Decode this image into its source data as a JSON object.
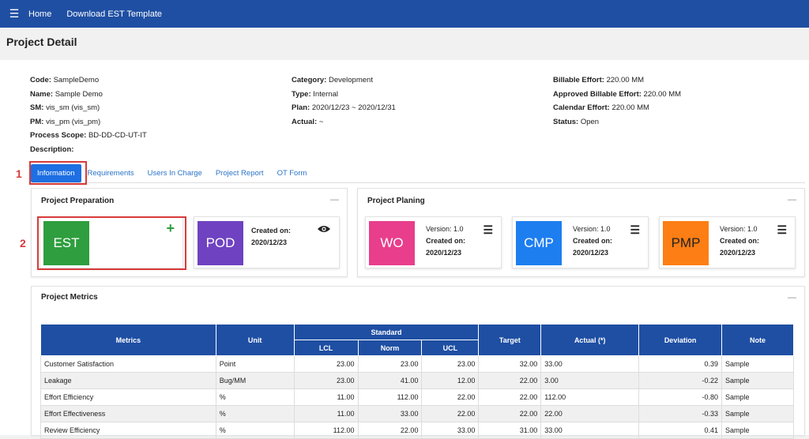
{
  "nav": {
    "home": "Home",
    "download": "Download EST Template"
  },
  "page_title": "Project Detail",
  "info": {
    "col1": [
      {
        "label": "Code:",
        "value": "SampleDemo"
      },
      {
        "label": "Name:",
        "value": "Sample Demo"
      },
      {
        "label": "SM:",
        "value": "vis_sm (vis_sm)"
      },
      {
        "label": "PM:",
        "value": "vis_pm (vis_pm)"
      },
      {
        "label": "Process Scope:",
        "value": "BD-DD-CD-UT-IT"
      },
      {
        "label": "Description:",
        "value": ""
      }
    ],
    "col2": [
      {
        "label": "Category:",
        "value": "Development"
      },
      {
        "label": "Type:",
        "value": "Internal"
      },
      {
        "label": "Plan:",
        "value": "2020/12/23 ~ 2020/12/31"
      },
      {
        "label": "Actual:",
        "value": "~"
      }
    ],
    "col3": [
      {
        "label": "Billable Effort:",
        "value": "220.00 MM"
      },
      {
        "label": "Approved Billable Effort:",
        "value": "220.00 MM"
      },
      {
        "label": "Calendar Effort:",
        "value": "220.00 MM"
      },
      {
        "label": "Status:",
        "value": "Open"
      }
    ]
  },
  "tabs": [
    "Information",
    "Requirements",
    "Users In Charge",
    "Project Report",
    "OT Form"
  ],
  "annotations": {
    "one": "1",
    "two": "2"
  },
  "prep": {
    "title": "Project Preparation",
    "collapse": "—",
    "est": {
      "label": "EST",
      "color": "#2e9e3e",
      "icon": "plus-icon"
    },
    "pod": {
      "label": "POD",
      "color": "#6f42c1",
      "created_label": "Created on:",
      "created": "2020/12/23",
      "icon": "eye-icon"
    }
  },
  "plan": {
    "title": "Project Planing",
    "collapse": "—",
    "tiles": [
      {
        "label": "WO",
        "color": "#e83e8c",
        "version": "Version: 1.0",
        "created_label": "Created on:",
        "created": "2020/12/23"
      },
      {
        "label": "CMP",
        "color": "#1d7ef0",
        "version": "Version: 1.0",
        "created_label": "Created on:",
        "created": "2020/12/23"
      },
      {
        "label": "PMP",
        "color": "#fd7e14",
        "version": "Version: 1.0",
        "created_label": "Created on:",
        "created": "2020/12/23"
      }
    ]
  },
  "metrics": {
    "title": "Project Metrics",
    "collapse": "—",
    "headers": {
      "metrics": "Metrics",
      "unit": "Unit",
      "standard": "Standard",
      "lcl": "LCL",
      "norm": "Norm",
      "ucl": "UCL",
      "target": "Target",
      "actual": "Actual (*)",
      "deviation": "Deviation",
      "note": "Note"
    },
    "rows": [
      {
        "metric": "Customer Satisfaction",
        "unit": "Point",
        "lcl": "23.00",
        "norm": "23.00",
        "ucl": "23.00",
        "target": "32.00",
        "actual": "33.00",
        "deviation": "0.39",
        "note": "Sample"
      },
      {
        "metric": "Leakage",
        "unit": "Bug/MM",
        "lcl": "23.00",
        "norm": "41.00",
        "ucl": "12.00",
        "target": "22.00",
        "actual": "3.00",
        "deviation": "-0.22",
        "note": "Sample"
      },
      {
        "metric": "Effort Efficiency",
        "unit": "%",
        "lcl": "11.00",
        "norm": "112.00",
        "ucl": "22.00",
        "target": "22.00",
        "actual": "112.00",
        "deviation": "-0.80",
        "note": "Sample"
      },
      {
        "metric": "Effort Effectiveness",
        "unit": "%",
        "lcl": "11.00",
        "norm": "33.00",
        "ucl": "22.00",
        "target": "22.00",
        "actual": "22.00",
        "deviation": "-0.33",
        "note": "Sample"
      },
      {
        "metric": "Review Efficiency",
        "unit": "%",
        "lcl": "112.00",
        "norm": "22.00",
        "ucl": "33.00",
        "target": "31.00",
        "actual": "33.00",
        "deviation": "0.41",
        "note": "Sample"
      }
    ]
  }
}
